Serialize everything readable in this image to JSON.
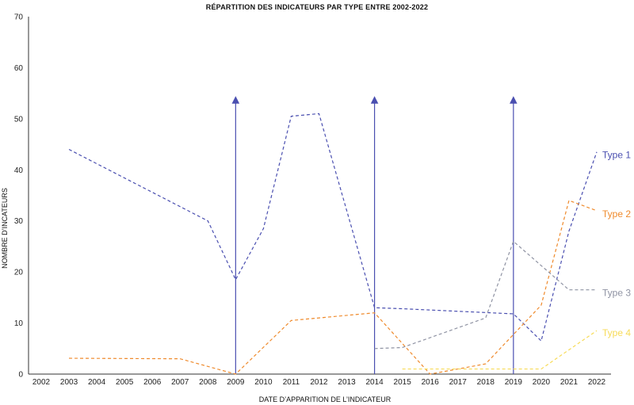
{
  "chart_data": {
    "type": "line",
    "title": "RÉPARTITION DES INDICATEURS PAR TYPE ENTRE 2002-2022",
    "xlabel": "DATE D’APPARITION DE L’INDICATEUR",
    "ylabel": "NOMBRE D’INCATEURS",
    "xlim": [
      2002,
      2022
    ],
    "ylim": [
      0,
      70
    ],
    "x_ticks": [
      2002,
      2003,
      2004,
      2005,
      2006,
      2007,
      2008,
      2009,
      2010,
      2011,
      2012,
      2013,
      2014,
      2015,
      2016,
      2017,
      2018,
      2019,
      2020,
      2021,
      2022
    ],
    "y_ticks": [
      0,
      10,
      20,
      30,
      40,
      50,
      60,
      70
    ],
    "grid": false,
    "legend": "inline labels at right end of each series",
    "vertical_markers": [
      2009,
      2014,
      2019
    ],
    "series": [
      {
        "name": "Type 1",
        "color": "#4a4fb0",
        "points": [
          [
            2003,
            44
          ],
          [
            2008,
            30
          ],
          [
            2009,
            18.5
          ],
          [
            2010,
            28.5
          ],
          [
            2011,
            50.5
          ],
          [
            2012,
            51
          ],
          [
            2014,
            13
          ],
          [
            2015,
            12.8
          ],
          [
            2019,
            11.8
          ],
          [
            2020,
            6.5
          ],
          [
            2021,
            28
          ],
          [
            2022,
            43.5
          ]
        ]
      },
      {
        "name": "Type 2",
        "color": "#ef8a2c",
        "points": [
          [
            2003,
            3.1
          ],
          [
            2007,
            3
          ],
          [
            2009,
            0
          ],
          [
            2011,
            10.5
          ],
          [
            2014,
            12
          ],
          [
            2016,
            0
          ],
          [
            2018,
            2
          ],
          [
            2020,
            13.5
          ],
          [
            2021,
            34
          ],
          [
            2022,
            32
          ]
        ]
      },
      {
        "name": "Type 3",
        "color": "#8f93a3",
        "points": [
          [
            2014,
            5
          ],
          [
            2015,
            5.2
          ],
          [
            2018,
            11
          ],
          [
            2019,
            26
          ],
          [
            2021,
            16.5
          ],
          [
            2022,
            16.5
          ]
        ]
      },
      {
        "name": "Type 4",
        "color": "#f7db57",
        "points": [
          [
            2015,
            1
          ],
          [
            2020,
            1
          ],
          [
            2022,
            8.5
          ]
        ]
      }
    ]
  }
}
